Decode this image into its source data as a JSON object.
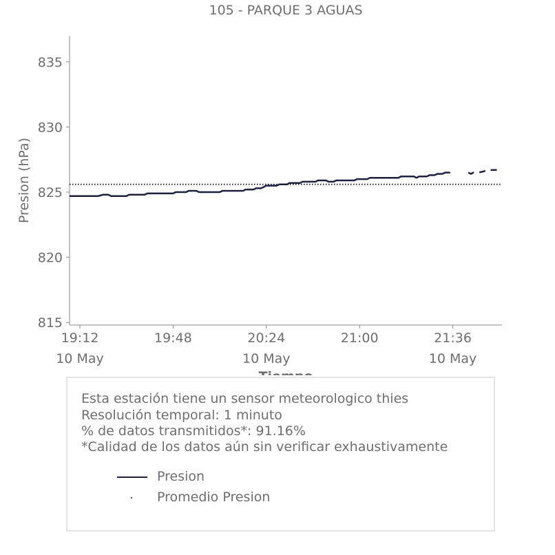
{
  "chart_data": {
    "type": "line",
    "title": "105 - PARQUE 3 AGUAS",
    "xlabel": "Tiempo",
    "ylabel": "Presion (hPa)",
    "x_range": [
      "19:08",
      "21:55"
    ],
    "ylim": [
      814.8,
      837
    ],
    "y_ticks": [
      815,
      820,
      825,
      830,
      835
    ],
    "x_ticks": [
      {
        "time": "19:12",
        "label": "19:12",
        "date": "10 May"
      },
      {
        "time": "19:48",
        "label": "19:48",
        "date": ""
      },
      {
        "time": "20:24",
        "label": "20:24",
        "date": "10 May"
      },
      {
        "time": "21:00",
        "label": "21:00",
        "date": ""
      },
      {
        "time": "21:36",
        "label": "21:36",
        "date": "10 May"
      }
    ],
    "grid": false,
    "series": [
      {
        "name": "Presion",
        "color": "#1f1f3f",
        "style": "solid",
        "points": [
          [
            "19:08",
            824.7
          ],
          [
            "19:19",
            824.7
          ],
          [
            "19:21",
            824.8
          ],
          [
            "19:23",
            824.8
          ],
          [
            "19:24",
            824.7
          ],
          [
            "19:30",
            824.7
          ],
          [
            "19:31",
            824.8
          ],
          [
            "19:37",
            824.8
          ],
          [
            "19:38",
            824.9
          ],
          [
            "19:48",
            824.9
          ],
          [
            "19:49",
            825.0
          ],
          [
            "19:53",
            825.0
          ],
          [
            "19:54",
            825.1
          ],
          [
            "19:57",
            825.1
          ],
          [
            "19:58",
            825.0
          ],
          [
            "20:06",
            825.0
          ],
          [
            "20:07",
            825.1
          ],
          [
            "20:15",
            825.1
          ],
          [
            "20:16",
            825.2
          ],
          [
            "20:19",
            825.2
          ],
          [
            "20:20",
            825.3
          ],
          [
            "20:22",
            825.3
          ],
          [
            "20:23",
            825.4
          ],
          [
            "20:24",
            825.5
          ],
          [
            "20:28",
            825.5
          ],
          [
            "20:29",
            825.6
          ],
          [
            "20:32",
            825.6
          ],
          [
            "20:33",
            825.7
          ],
          [
            "20:37",
            825.7
          ],
          [
            "20:38",
            825.8
          ],
          [
            "20:43",
            825.8
          ],
          [
            "20:44",
            825.9
          ],
          [
            "20:47",
            825.9
          ],
          [
            "20:48",
            825.8
          ],
          [
            "20:50",
            825.8
          ],
          [
            "20:51",
            825.9
          ],
          [
            "20:58",
            825.9
          ],
          [
            "20:59",
            826.0
          ],
          [
            "21:03",
            826.0
          ],
          [
            "21:04",
            826.1
          ],
          [
            "21:15",
            826.1
          ],
          [
            "21:16",
            826.2
          ],
          [
            "21:21",
            826.2
          ],
          [
            "21:22",
            826.1
          ],
          [
            "21:23",
            826.2
          ],
          [
            "21:26",
            826.2
          ],
          [
            "21:27",
            826.3
          ],
          [
            "21:29",
            826.3
          ],
          [
            "21:30",
            826.4
          ],
          [
            "21:32",
            826.4
          ],
          [
            "21:33",
            826.5
          ],
          [
            "21:35",
            826.5
          ]
        ]
      },
      {
        "name": "Presion",
        "color": "#1f1f3f",
        "style": "dashed",
        "points": [
          [
            "21:42",
            826.5
          ],
          [
            "21:43",
            826.4
          ],
          [
            "21:44",
            826.5
          ],
          [
            "21:46",
            826.5
          ],
          [
            "21:48",
            826.6
          ],
          [
            "21:49",
            826.7
          ],
          [
            "21:55",
            826.7
          ]
        ]
      },
      {
        "name": "Promedio Presion",
        "color": "#1f1f3f",
        "style": "dotted",
        "value": 825.6,
        "points": [
          [
            "19:08",
            825.6
          ],
          [
            "21:55",
            825.6
          ]
        ]
      }
    ]
  },
  "info": {
    "lines": [
      "Esta estación tiene un sensor meteorologico thies",
      "Resolución temporal: 1 minuto",
      "% de datos transmitidos*: 91.16%",
      "*Calidad de los datos aún sin verificar exhaustivamente"
    ],
    "legend": [
      {
        "label": "Presion",
        "marker": "line"
      },
      {
        "label": "Promedio Presion",
        "marker": "dot"
      }
    ]
  }
}
